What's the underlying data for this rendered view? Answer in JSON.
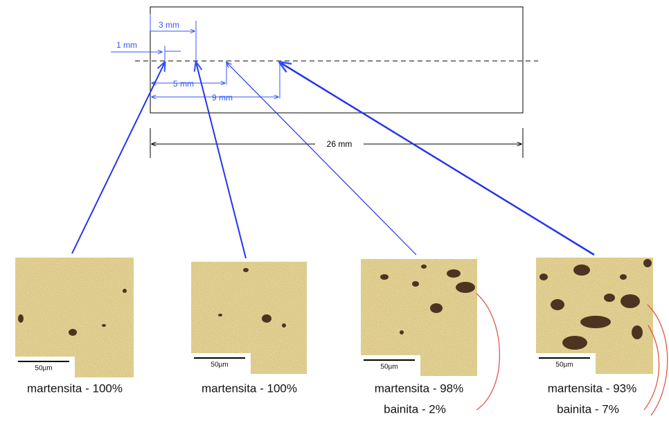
{
  "dimensions": {
    "d1": "1 mm",
    "d3": "3 mm",
    "d5": "5 mm",
    "d9": "9 mm",
    "total": "26 mm"
  },
  "micrographs": [
    {
      "scale": "50µm",
      "captions": [
        "martensita - 100%"
      ]
    },
    {
      "scale": "50µm",
      "captions": [
        "martensita - 100%"
      ]
    },
    {
      "scale": "50µm",
      "captions": [
        "martensita - 98%",
        "bainita - 2%"
      ]
    },
    {
      "scale": "50µm",
      "captions": [
        "martensita - 93%",
        "bainita - 7%"
      ]
    }
  ]
}
